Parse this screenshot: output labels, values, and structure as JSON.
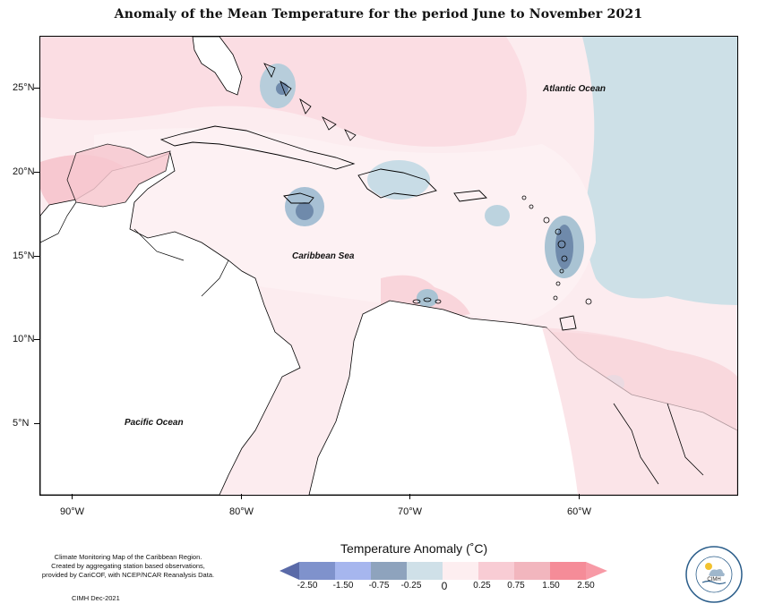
{
  "title": "Anomaly of the Mean Temperature for the period June to November 2021",
  "map": {
    "y_axis_labels": [
      "25°N",
      "20°N",
      "15°N",
      "10°N",
      "5°N"
    ],
    "x_axis_labels": [
      "90°W",
      "80°W",
      "70°W",
      "60°W"
    ],
    "ocean_labels": {
      "atlantic": "Atlantic Ocean",
      "caribbean": "Caribbean Sea",
      "pacific": "Pacific Ocean"
    }
  },
  "legend": {
    "title": "Temperature Anomaly (˚C)",
    "labels": [
      "-2.50",
      "-1.50",
      "-0.75",
      "-0.25",
      "0",
      "0.25",
      "0.75",
      "1.50",
      "2.50"
    ],
    "colors": [
      "#5a6aa8",
      "#7f92cc",
      "#a6b6ee",
      "#8ea3bd",
      "#cfe0e8",
      "#fdeef0",
      "#f8ccd4",
      "#f2b6be",
      "#f58c98",
      "#f79aa6"
    ]
  },
  "footer": {
    "note_lines": [
      "Climate Monitoring Map of the Caribbean Region.",
      "Created by aggregating station based observations,",
      "provided by CariCOF, with NCEP/NCAR Reanalysis Data."
    ],
    "date": "CIMH Dec-2021"
  },
  "logo": {
    "text": "CIMH",
    "icon": "cimh-logo-icon"
  }
}
